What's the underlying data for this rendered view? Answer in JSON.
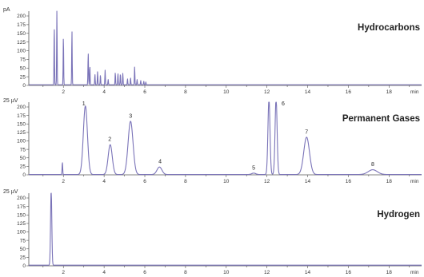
{
  "colors": {
    "trace": "#7a73b8",
    "axis": "#555555"
  },
  "chart_data": [
    {
      "type": "line",
      "title": "Hydrocarbons",
      "unit": "pA",
      "xunit": "min",
      "xlim": [
        0.3,
        19.6
      ],
      "ylim": [
        0,
        200
      ],
      "yticks": [
        0,
        25,
        50,
        75,
        100,
        125,
        150,
        175,
        200
      ],
      "ytick_labels": [
        "0",
        "25",
        "50",
        "75",
        "100",
        "125",
        "150",
        "175",
        "200"
      ],
      "xticks": [
        2,
        4,
        6,
        8,
        10,
        12,
        14,
        16,
        18
      ],
      "xtick_labels": [
        "2",
        "4",
        "6",
        "8",
        "10",
        "12",
        "14",
        "16",
        "18"
      ],
      "baseline": 2,
      "peaks": [
        {
          "rt": 1.55,
          "height": 170,
          "width": 0.012
        },
        {
          "rt": 1.68,
          "height": 215,
          "width": 0.012
        },
        {
          "rt": 2.0,
          "height": 140,
          "width": 0.012
        },
        {
          "rt": 2.42,
          "height": 157,
          "width": 0.012
        },
        {
          "rt": 3.22,
          "height": 90,
          "width": 0.014
        },
        {
          "rt": 3.3,
          "height": 55,
          "width": 0.012
        },
        {
          "rt": 3.55,
          "height": 30,
          "width": 0.012
        },
        {
          "rt": 3.68,
          "height": 38,
          "width": 0.012
        },
        {
          "rt": 3.82,
          "height": 28,
          "width": 0.012
        },
        {
          "rt": 4.05,
          "height": 42,
          "width": 0.012
        },
        {
          "rt": 4.2,
          "height": 15,
          "width": 0.012
        },
        {
          "rt": 4.55,
          "height": 35,
          "width": 0.012
        },
        {
          "rt": 4.68,
          "height": 33,
          "width": 0.012
        },
        {
          "rt": 4.8,
          "height": 32,
          "width": 0.012
        },
        {
          "rt": 4.92,
          "height": 33,
          "width": 0.012
        },
        {
          "rt": 5.15,
          "height": 17,
          "width": 0.012
        },
        {
          "rt": 5.3,
          "height": 20,
          "width": 0.012
        },
        {
          "rt": 5.5,
          "height": 52,
          "width": 0.012
        },
        {
          "rt": 5.62,
          "height": 15,
          "width": 0.012
        },
        {
          "rt": 5.8,
          "height": 12,
          "width": 0.012
        },
        {
          "rt": 5.95,
          "height": 10,
          "width": 0.012
        },
        {
          "rt": 6.05,
          "height": 8,
          "width": 0.012
        }
      ],
      "peak_labels": []
    },
    {
      "type": "line",
      "title": "Permanent Gases",
      "unit": "25 µV",
      "xunit": "min",
      "xlim": [
        0.3,
        19.6
      ],
      "ylim": [
        0,
        200
      ],
      "yticks": [
        0,
        25,
        50,
        75,
        100,
        125,
        150,
        175,
        200
      ],
      "ytick_labels": [
        "0",
        "25",
        "50",
        "75",
        "100",
        "125",
        "150",
        "175",
        "200"
      ],
      "xticks": [
        2,
        4,
        6,
        8,
        10,
        12,
        14,
        16,
        18
      ],
      "xtick_labels": [
        "2",
        "4",
        "6",
        "8",
        "10",
        "12",
        "14",
        "16",
        "18"
      ],
      "baseline": 1,
      "peaks": [
        {
          "rt": 1.95,
          "height": 36,
          "width": 0.015
        },
        {
          "rt": 3.08,
          "height": 202,
          "width": 0.1
        },
        {
          "rt": 4.3,
          "height": 88,
          "width": 0.1
        },
        {
          "rt": 5.3,
          "height": 157,
          "width": 0.12
        },
        {
          "rt": 6.72,
          "height": 22,
          "width": 0.12
        },
        {
          "rt": 11.35,
          "height": 4,
          "width": 0.1
        },
        {
          "rt": 12.1,
          "height": 225,
          "width": 0.05
        },
        {
          "rt": 12.45,
          "height": 225,
          "width": 0.05
        },
        {
          "rt": 13.95,
          "height": 110,
          "width": 0.14
        },
        {
          "rt": 17.2,
          "height": 14,
          "width": 0.22
        }
      ],
      "peak_labels": [
        {
          "label": "1",
          "rt": 3.0,
          "height": 202
        },
        {
          "label": "2",
          "rt": 4.28,
          "height": 88
        },
        {
          "label": "3",
          "rt": 5.3,
          "height": 157
        },
        {
          "label": "4",
          "rt": 6.75,
          "height": 22
        },
        {
          "label": "5",
          "rt": 11.35,
          "height": 4
        },
        {
          "label": "6",
          "rt": 12.8,
          "height": 195
        },
        {
          "label": "7",
          "rt": 13.95,
          "height": 110
        },
        {
          "label": "8",
          "rt": 17.2,
          "height": 14
        }
      ]
    },
    {
      "type": "line",
      "title": "Hydrogen",
      "unit": "25 µV",
      "xunit": "min",
      "xlim": [
        0.3,
        19.6
      ],
      "ylim": [
        0,
        200
      ],
      "yticks": [
        0,
        25,
        50,
        75,
        100,
        125,
        150,
        175,
        200
      ],
      "ytick_labels": [
        "0",
        "25",
        "50",
        "75",
        "100",
        "125",
        "150",
        "175",
        "200"
      ],
      "xticks": [
        2,
        4,
        6,
        8,
        10,
        12,
        14,
        16,
        18
      ],
      "xtick_labels": [
        "2",
        "4",
        "6",
        "8",
        "10",
        "12",
        "14",
        "16",
        "18"
      ],
      "baseline": 2,
      "peaks": [
        {
          "rt": 1.4,
          "height": 225,
          "width": 0.03
        }
      ],
      "peak_labels": []
    }
  ]
}
